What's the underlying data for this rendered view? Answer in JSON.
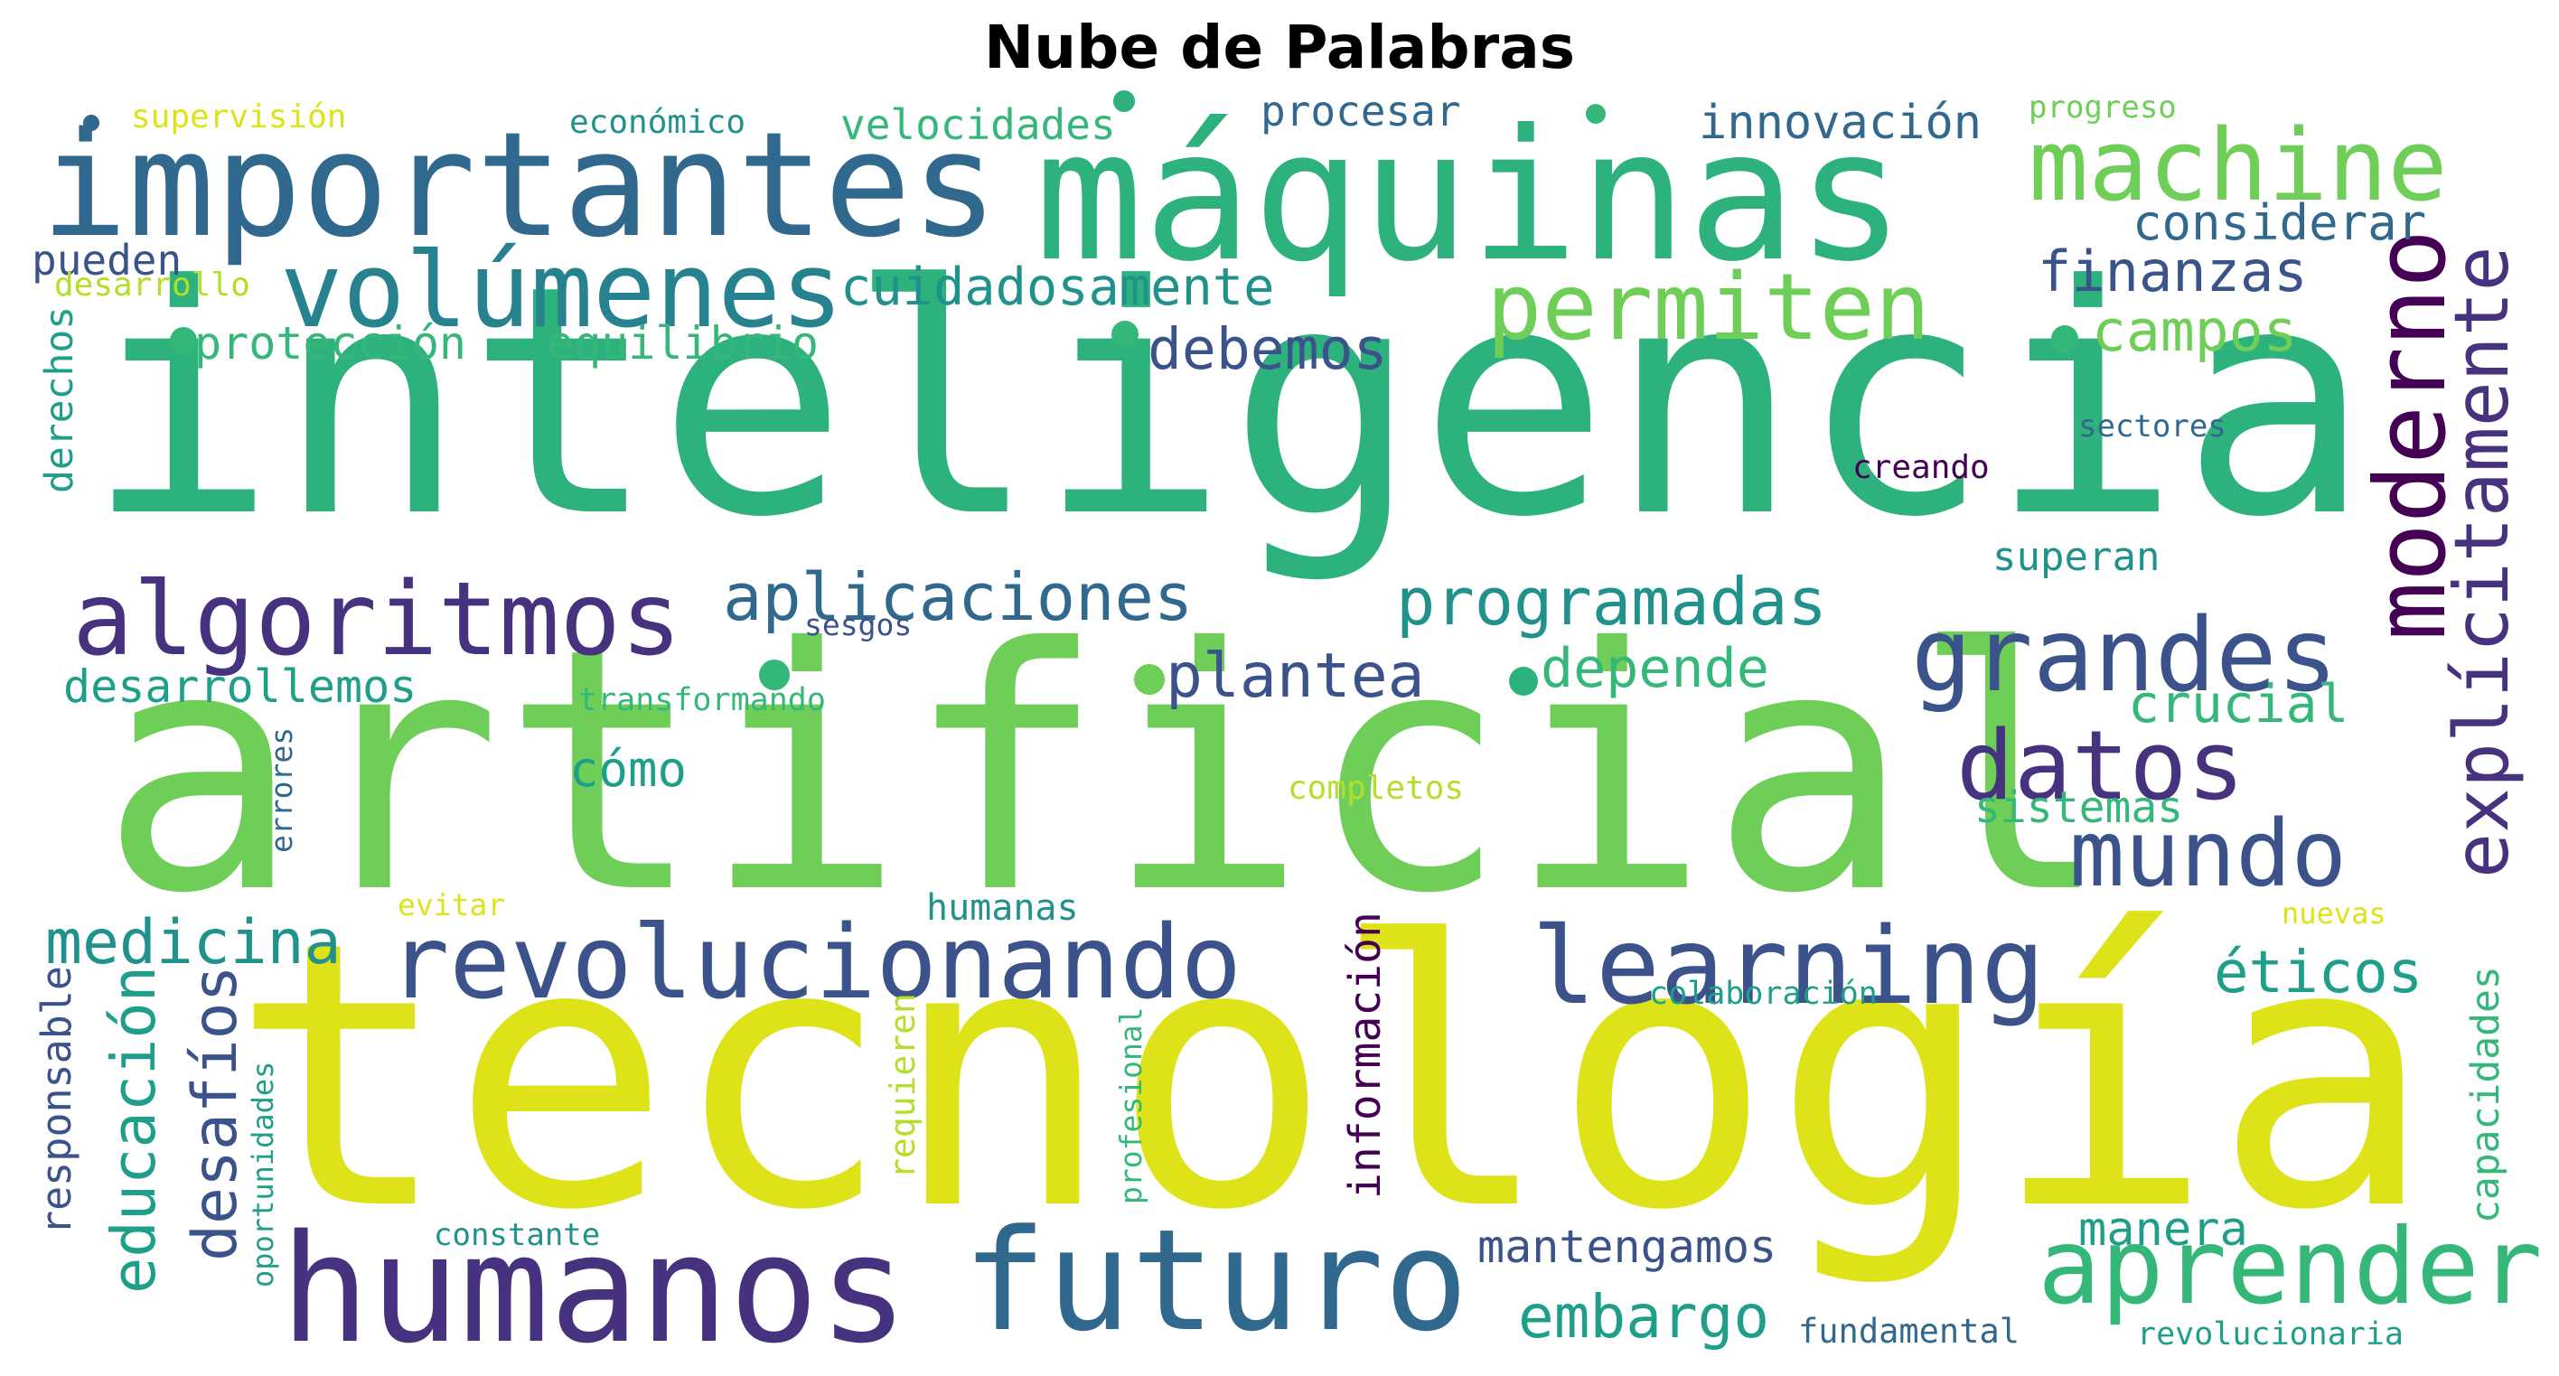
{
  "title": "Nube de Palabras",
  "colors": {
    "c1": "#440154",
    "c2": "#3b528b",
    "c3": "#31688e",
    "c4": "#26828e",
    "c5": "#21918c",
    "c6": "#1f9e89",
    "c7": "#35b779",
    "c8": "#6ece58",
    "c9": "#b5de2b",
    "c10": "#dde318",
    "c11": "#2db27d",
    "c12": "#46327e"
  },
  "words": [
    {
      "text": "inteligencia",
      "color": "c11"
    },
    {
      "text": "artificial",
      "color": "c8"
    },
    {
      "text": "tecnología",
      "color": "c10"
    },
    {
      "text": "máquinas",
      "color": "c11"
    },
    {
      "text": "importantes",
      "color": "c3"
    },
    {
      "text": "machine",
      "color": "c8"
    },
    {
      "text": "volúmenes",
      "color": "c4"
    },
    {
      "text": "permiten",
      "color": "c8"
    },
    {
      "text": "moderno",
      "color": "c1"
    },
    {
      "text": "explícitamente",
      "color": "c12"
    },
    {
      "text": "algoritmos",
      "color": "c12"
    },
    {
      "text": "aplicaciones",
      "color": "c3"
    },
    {
      "text": "programadas",
      "color": "c5"
    },
    {
      "text": "grandes",
      "color": "c2"
    },
    {
      "text": "datos",
      "color": "c12"
    },
    {
      "text": "mundo",
      "color": "c2"
    },
    {
      "text": "revolucionando",
      "color": "c2"
    },
    {
      "text": "learning",
      "color": "c2"
    },
    {
      "text": "humanos",
      "color": "c12"
    },
    {
      "text": "futuro",
      "color": "c3"
    },
    {
      "text": "aprender",
      "color": "c7"
    },
    {
      "text": "medicina",
      "color": "c5"
    },
    {
      "text": "educación",
      "color": "c6"
    },
    {
      "text": "desafíos",
      "color": "c2"
    },
    {
      "text": "información",
      "color": "c1"
    },
    {
      "text": "responsable",
      "color": "c2"
    },
    {
      "text": "embargo",
      "color": "c6"
    },
    {
      "text": "mantengamos",
      "color": "c2"
    },
    {
      "text": "manera",
      "color": "c6"
    },
    {
      "text": "éticos",
      "color": "c6"
    },
    {
      "text": "capacidades",
      "color": "c7"
    },
    {
      "text": "velocidades",
      "color": "c7"
    },
    {
      "text": "procesar",
      "color": "c3"
    },
    {
      "text": "innovación",
      "color": "c3"
    },
    {
      "text": "considerar",
      "color": "c3"
    },
    {
      "text": "finanzas",
      "color": "c2"
    },
    {
      "text": "campos",
      "color": "c8"
    },
    {
      "text": "cuidadosamente",
      "color": "c5"
    },
    {
      "text": "debemos",
      "color": "c2"
    },
    {
      "text": "protección",
      "color": "c7"
    },
    {
      "text": "equilibrio",
      "color": "c7"
    },
    {
      "text": "pueden",
      "color": "c2"
    },
    {
      "text": "supervisión",
      "color": "c10"
    },
    {
      "text": "económico",
      "color": "c5"
    },
    {
      "text": "progreso",
      "color": "c8"
    },
    {
      "text": "desarrollo",
      "color": "c9"
    },
    {
      "text": "derechos",
      "color": "c6"
    },
    {
      "text": "plantea",
      "color": "c2"
    },
    {
      "text": "depende",
      "color": "c7"
    },
    {
      "text": "desarrollemos",
      "color": "c6"
    },
    {
      "text": "transformando",
      "color": "c7"
    },
    {
      "text": "cómo",
      "color": "c6"
    },
    {
      "text": "crucial",
      "color": "c7"
    },
    {
      "text": "sistemas",
      "color": "c7"
    },
    {
      "text": "superan",
      "color": "c5"
    },
    {
      "text": "sectores",
      "color": "c3"
    },
    {
      "text": "creando",
      "color": "c1"
    },
    {
      "text": "sesgos",
      "color": "c2"
    },
    {
      "text": "errores",
      "color": "c3"
    },
    {
      "text": "completos",
      "color": "c9"
    },
    {
      "text": "humanas",
      "color": "c5"
    },
    {
      "text": "evitar",
      "color": "c10"
    },
    {
      "text": "nuevas",
      "color": "c10"
    },
    {
      "text": "colaboración",
      "color": "c6"
    },
    {
      "text": "requieren",
      "color": "c9"
    },
    {
      "text": "profesional",
      "color": "c7"
    },
    {
      "text": "oportunidades",
      "color": "c6"
    },
    {
      "text": "constante",
      "color": "c5"
    },
    {
      "text": "fundamental",
      "color": "c3"
    },
    {
      "text": "revolucionaria",
      "color": "c6"
    }
  ],
  "dots": [
    {
      "color": "c3"
    },
    {
      "color": "c7"
    },
    {
      "color": "c11"
    },
    {
      "color": "c7"
    },
    {
      "color": "c7"
    },
    {
      "color": "c7"
    },
    {
      "color": "c7"
    },
    {
      "color": "c8"
    },
    {
      "color": "c11"
    },
    {
      "color": "c7"
    }
  ]
}
